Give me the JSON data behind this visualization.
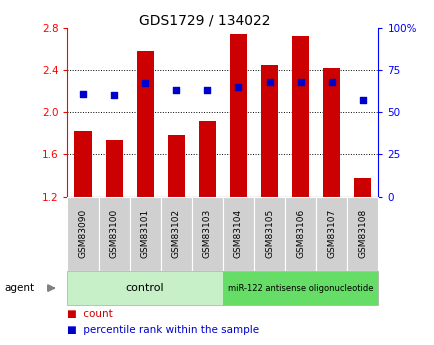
{
  "title": "GDS1729 / 134022",
  "samples": [
    "GSM83090",
    "GSM83100",
    "GSM83101",
    "GSM83102",
    "GSM83103",
    "GSM83104",
    "GSM83105",
    "GSM83106",
    "GSM83107",
    "GSM83108"
  ],
  "bar_values": [
    1.82,
    1.74,
    2.58,
    1.78,
    1.92,
    2.74,
    2.45,
    2.72,
    2.42,
    1.38
  ],
  "dot_values": [
    61,
    60,
    67,
    63,
    63,
    65,
    68,
    68,
    68,
    57
  ],
  "bar_color": "#cc0000",
  "dot_color": "#0000cc",
  "ylim_left": [
    1.2,
    2.8
  ],
  "ylim_right": [
    0,
    100
  ],
  "yticks_left": [
    1.2,
    1.6,
    2.0,
    2.4,
    2.8
  ],
  "yticks_right": [
    0,
    25,
    50,
    75,
    100
  ],
  "ytick_labels_left": [
    "1.2",
    "1.6",
    "2.0",
    "2.4",
    "2.8"
  ],
  "ytick_labels_right": [
    "0",
    "25",
    "50",
    "75",
    "100%"
  ],
  "gridlines": [
    1.6,
    2.0,
    2.4
  ],
  "control_label": "control",
  "treatment_label": "miR-122 antisense oligonucleotide",
  "agent_label": "agent",
  "legend_count": "count",
  "legend_percentile": "percentile rank within the sample",
  "bar_width": 0.55,
  "control_bg": "#c8f0c8",
  "treatment_bg": "#66dd66",
  "sample_box_bg": "#d0d0d0",
  "n_control": 5,
  "n_treatment": 5
}
